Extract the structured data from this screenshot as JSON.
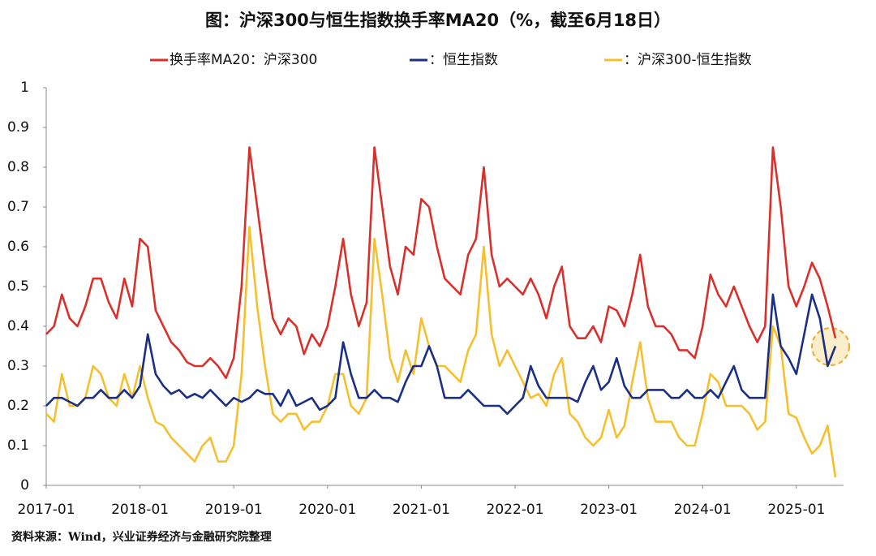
{
  "chart_data": {
    "type": "line",
    "title": "图：沪深300与恒生指数换手率MA20（%，截至6月18日）",
    "source": "资料来源：Wind，兴业证券经济与金融研究院整理",
    "x": [
      "2017-01",
      "2017-02",
      "2017-03",
      "2017-04",
      "2017-05",
      "2017-06",
      "2017-07",
      "2017-08",
      "2017-09",
      "2017-10",
      "2017-11",
      "2017-12",
      "2018-01",
      "2018-02",
      "2018-03",
      "2018-04",
      "2018-05",
      "2018-06",
      "2018-07",
      "2018-08",
      "2018-09",
      "2018-10",
      "2018-11",
      "2018-12",
      "2019-01",
      "2019-02",
      "2019-03",
      "2019-04",
      "2019-05",
      "2019-06",
      "2019-07",
      "2019-08",
      "2019-09",
      "2019-10",
      "2019-11",
      "2019-12",
      "2020-01",
      "2020-02",
      "2020-03",
      "2020-04",
      "2020-05",
      "2020-06",
      "2020-07",
      "2020-08",
      "2020-09",
      "2020-10",
      "2020-11",
      "2020-12",
      "2021-01",
      "2021-02",
      "2021-03",
      "2021-04",
      "2021-05",
      "2021-06",
      "2021-07",
      "2021-08",
      "2021-09",
      "2021-10",
      "2021-11",
      "2021-12",
      "2022-01",
      "2022-02",
      "2022-03",
      "2022-04",
      "2022-05",
      "2022-06",
      "2022-07",
      "2022-08",
      "2022-09",
      "2022-10",
      "2022-11",
      "2022-12",
      "2023-01",
      "2023-02",
      "2023-03",
      "2023-04",
      "2023-05",
      "2023-06",
      "2023-07",
      "2023-08",
      "2023-09",
      "2023-10",
      "2023-11",
      "2023-12",
      "2024-01",
      "2024-02",
      "2024-03",
      "2024-04",
      "2024-05",
      "2024-06",
      "2024-07",
      "2024-08",
      "2024-09",
      "2024-10",
      "2024-11",
      "2024-12",
      "2025-01",
      "2025-02",
      "2025-03",
      "2025-04",
      "2025-05",
      "2025-06"
    ],
    "series": [
      {
        "name": "换手率MA20：沪深300",
        "color": "#d9302c",
        "values": [
          0.38,
          0.4,
          0.48,
          0.42,
          0.4,
          0.45,
          0.52,
          0.52,
          0.46,
          0.42,
          0.52,
          0.45,
          0.62,
          0.6,
          0.44,
          0.4,
          0.36,
          0.34,
          0.31,
          0.3,
          0.3,
          0.32,
          0.3,
          0.27,
          0.32,
          0.5,
          0.85,
          0.7,
          0.55,
          0.42,
          0.38,
          0.42,
          0.4,
          0.33,
          0.38,
          0.35,
          0.4,
          0.5,
          0.62,
          0.48,
          0.4,
          0.46,
          0.85,
          0.7,
          0.55,
          0.48,
          0.6,
          0.58,
          0.72,
          0.7,
          0.6,
          0.52,
          0.5,
          0.48,
          0.58,
          0.62,
          0.8,
          0.58,
          0.5,
          0.52,
          0.5,
          0.48,
          0.52,
          0.48,
          0.42,
          0.5,
          0.55,
          0.4,
          0.37,
          0.37,
          0.4,
          0.36,
          0.45,
          0.44,
          0.4,
          0.48,
          0.58,
          0.45,
          0.4,
          0.4,
          0.38,
          0.34,
          0.34,
          0.32,
          0.4,
          0.53,
          0.48,
          0.45,
          0.5,
          0.45,
          0.4,
          0.36,
          0.4,
          0.85,
          0.7,
          0.5,
          0.45,
          0.5,
          0.56,
          0.52,
          0.45,
          0.37
        ]
      },
      {
        "name": "：恒生指数",
        "color": "#1b2f85",
        "values": [
          0.2,
          0.22,
          0.22,
          0.21,
          0.2,
          0.22,
          0.22,
          0.24,
          0.22,
          0.22,
          0.24,
          0.22,
          0.25,
          0.38,
          0.28,
          0.25,
          0.23,
          0.24,
          0.22,
          0.23,
          0.22,
          0.24,
          0.22,
          0.2,
          0.22,
          0.21,
          0.22,
          0.24,
          0.23,
          0.23,
          0.2,
          0.24,
          0.2,
          0.21,
          0.22,
          0.19,
          0.2,
          0.22,
          0.36,
          0.28,
          0.22,
          0.22,
          0.24,
          0.22,
          0.22,
          0.21,
          0.26,
          0.3,
          0.3,
          0.35,
          0.3,
          0.22,
          0.22,
          0.22,
          0.24,
          0.22,
          0.2,
          0.2,
          0.2,
          0.18,
          0.2,
          0.22,
          0.3,
          0.25,
          0.22,
          0.22,
          0.22,
          0.22,
          0.21,
          0.26,
          0.3,
          0.24,
          0.26,
          0.32,
          0.25,
          0.22,
          0.22,
          0.24,
          0.24,
          0.24,
          0.22,
          0.22,
          0.24,
          0.22,
          0.22,
          0.24,
          0.22,
          0.26,
          0.3,
          0.24,
          0.22,
          0.22,
          0.22,
          0.48,
          0.35,
          0.32,
          0.28,
          0.38,
          0.48,
          0.42,
          0.3,
          0.35
        ]
      },
      {
        "name": "：沪深300-恒生指数",
        "color": "#f5c030",
        "values": [
          0.18,
          0.16,
          0.28,
          0.2,
          0.2,
          0.22,
          0.3,
          0.28,
          0.22,
          0.2,
          0.28,
          0.22,
          0.3,
          0.22,
          0.16,
          0.15,
          0.12,
          0.1,
          0.08,
          0.06,
          0.1,
          0.12,
          0.06,
          0.06,
          0.1,
          0.28,
          0.65,
          0.45,
          0.3,
          0.18,
          0.16,
          0.18,
          0.18,
          0.14,
          0.16,
          0.16,
          0.2,
          0.28,
          0.28,
          0.2,
          0.18,
          0.22,
          0.62,
          0.48,
          0.32,
          0.26,
          0.34,
          0.28,
          0.42,
          0.35,
          0.3,
          0.3,
          0.28,
          0.26,
          0.34,
          0.38,
          0.6,
          0.38,
          0.3,
          0.34,
          0.3,
          0.26,
          0.22,
          0.23,
          0.2,
          0.28,
          0.32,
          0.18,
          0.16,
          0.12,
          0.1,
          0.12,
          0.19,
          0.12,
          0.15,
          0.26,
          0.36,
          0.22,
          0.16,
          0.16,
          0.16,
          0.12,
          0.1,
          0.1,
          0.18,
          0.28,
          0.26,
          0.2,
          0.2,
          0.2,
          0.18,
          0.14,
          0.16,
          0.4,
          0.35,
          0.18,
          0.17,
          0.12,
          0.08,
          0.1,
          0.15,
          0.02
        ]
      }
    ],
    "ylim": [
      0,
      1
    ],
    "yticks": [
      0,
      0.1,
      0.2,
      0.3,
      0.4,
      0.5,
      0.6,
      0.7,
      0.8,
      0.9,
      1
    ],
    "grid": false
  }
}
